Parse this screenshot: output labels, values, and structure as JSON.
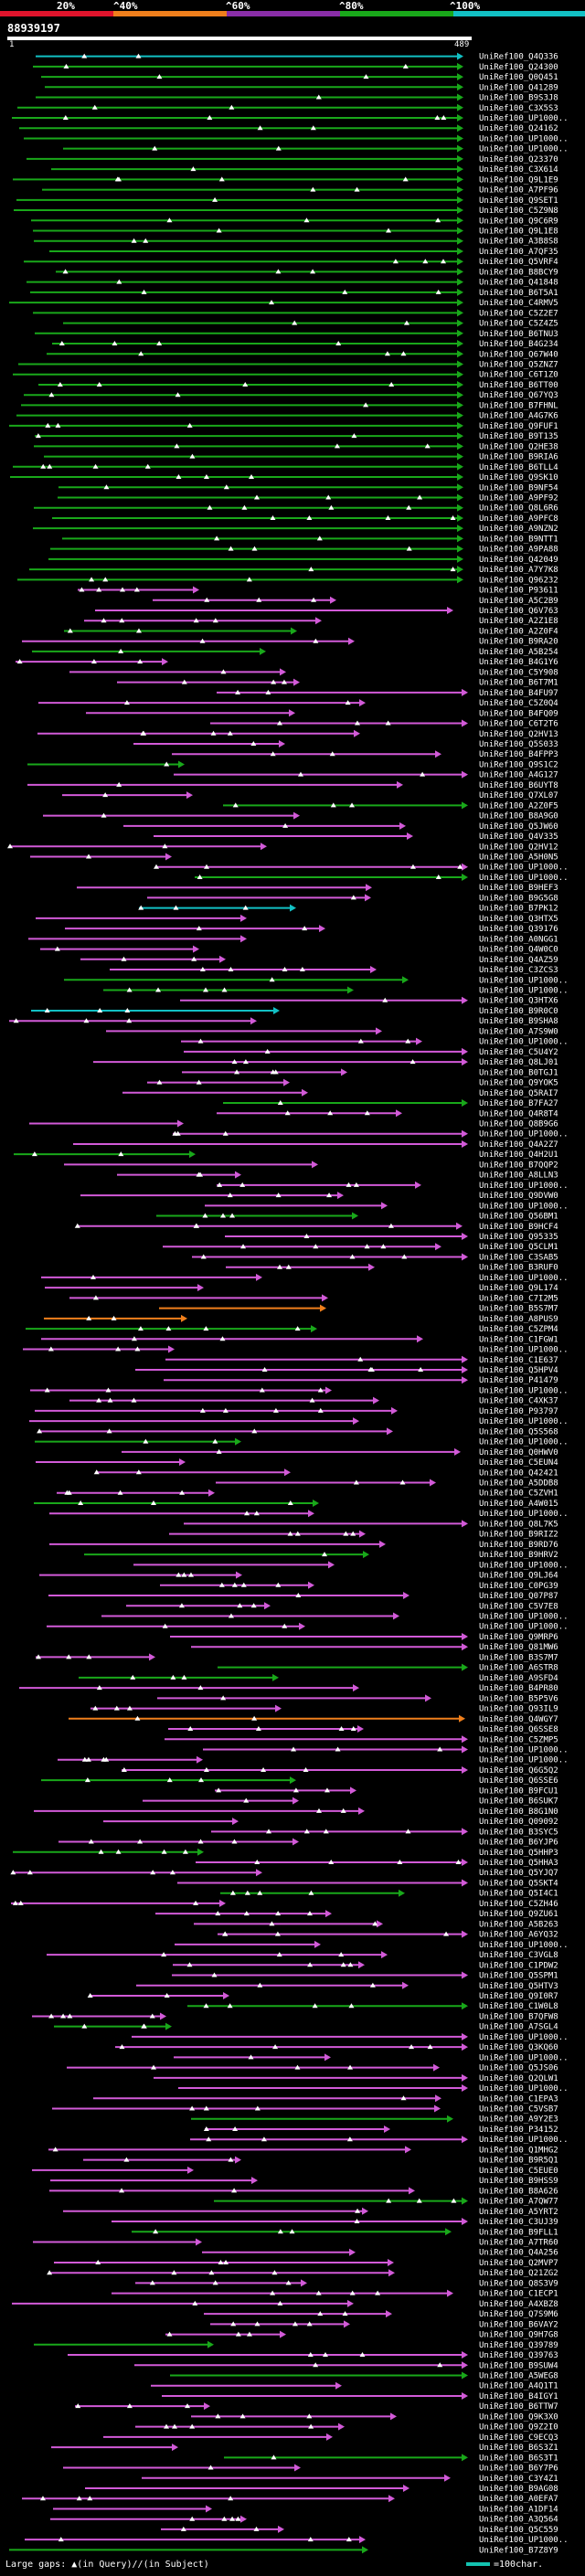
{
  "header": {
    "percent_labels": [
      "20%",
      "^40%",
      "^60%",
      "^80%",
      "^100%"
    ],
    "bar_colors": [
      "#e0142c",
      "#ef7f1c",
      "#8a2ea8",
      "#19a81a",
      "#12c0c4"
    ],
    "query_id": "88939197",
    "ruler_start": "1",
    "ruler_end": "489"
  },
  "footer": {
    "large_gaps_label": "Large gaps:",
    "in_query_label": "(in Query)/",
    "in_subject_label": "(in Subject)",
    "scale_label": "=100char."
  },
  "hits": [
    "UniRef100_Q4Q336",
    "UniRef100_Q24300",
    "UniRef100_Q0Q451",
    "UniRef100_Q41289",
    "UniRef100_B9S3J8",
    "UniRef100_C3X5S3",
    "UniRef100_UP1000..",
    "UniRef100_Q24162",
    "UniRef100_UP1000..",
    "UniRef100_UP1000..",
    "UniRef100_Q23370",
    "UniRef100_C3X614",
    "UniRef100_Q9L1E9",
    "UniRef100_A7PF96",
    "UniRef100_Q9SET1",
    "UniRef100_C5Z9N8",
    "UniRef100_Q9C6R9",
    "UniRef100_Q9L1E8",
    "UniRef100_A3B8S8",
    "UniRef100_A7QF35",
    "UniRef100_Q5VRF4",
    "UniRef100_B8BCY9",
    "UniRef100_Q41848",
    "UniRef100_B6T5A1",
    "UniRef100_C4RMV5",
    "UniRef100_C5Z2E7",
    "UniRef100_C5Z4Z5",
    "UniRef100_B6TNU3",
    "UniRef100_B4G234",
    "UniRef100_Q67W40",
    "UniRef100_Q5ZNZ7",
    "UniRef100_C6T1Z0",
    "UniRef100_B6TT00",
    "UniRef100_Q67YQ3",
    "UniRef100_B7FHNL",
    "UniRef100_A4G7K6",
    "UniRef100_Q9FUF1",
    "UniRef100_B9T135",
    "UniRef100_Q2HE38",
    "UniRef100_B9RIA6",
    "UniRef100_B6TLL4",
    "UniRef100_Q9SK10",
    "UniRef100_B9NF54",
    "UniRef100_A9PF92",
    "UniRef100_Q8L6R6",
    "UniRef100_A9PFC8",
    "UniRef100_A9NZN2",
    "UniRef100_B9NTT1",
    "UniRef100_A9PA88",
    "UniRef100_Q42049",
    "UniRef100_A7Y7K8",
    "UniRef100_Q96232",
    "UniRef100_P93611",
    "UniRef100_A5C2B9",
    "UniRef100_Q6V763",
    "UniRef100_A2Z1E8",
    "UniRef100_A2Z0F4",
    "UniRef100_B9RA20",
    "UniRef100_A5B254",
    "UniRef100_B4G1Y6",
    "UniRef100_C5Y908",
    "UniRef100_B6T7M1",
    "UniRef100_B4FU97",
    "UniRef100_C5Z0Q4",
    "UniRef100_B4FQ09",
    "UniRef100_C6T2T6",
    "UniRef100_Q2HV13",
    "UniRef100_Q5S033",
    "UniRef100_B4FPP3",
    "UniRef100_Q9S1C2",
    "UniRef100_A4G127",
    "UniRef100_B6UYT8",
    "UniRef100_Q7XL07",
    "UniRef100_A2Z0F5",
    "UniRef100_B8A9G0",
    "UniRef100_Q5JW60",
    "UniRef100_Q4V335",
    "UniRef100_Q2HV12",
    "UniRef100_A5H0N5",
    "UniRef100_UP1000..",
    "UniRef100_UP1000..",
    "UniRef100_B9HEF3",
    "UniRef100_B9G5G8",
    "UniRef100_B7PK12",
    "UniRef100_Q3HTX5",
    "UniRef100_Q39176",
    "UniRef100_A0NGG1",
    "UniRef100_Q4W0C0",
    "UniRef100_Q4AZ59",
    "UniRef100_C3ZCS3",
    "UniRef100_UP1000..",
    "UniRef100_UP1000..",
    "UniRef100_Q3HTX6",
    "UniRef100_B9R0C0",
    "UniRef100_B9SHA8",
    "UniRef100_A7S9W0",
    "UniRef100_UP1000..",
    "UniRef100_C5U4Y2",
    "UniRef100_Q8LJ01",
    "UniRef100_B0TGJ1",
    "UniRef100_Q9YOK5",
    "UniRef100_Q5RAI7",
    "UniRef100_B7FA27",
    "UniRef100_Q4R8T4",
    "UniRef100_Q8B9G6",
    "UniRef100_UP1000..",
    "UniRef100_Q4A2Z7",
    "UniRef100_Q4H2U1",
    "UniRef100_B7QQP2",
    "UniRef100_A8LLN3",
    "UniRef100_UP1000..",
    "UniRef100_Q9DVW0",
    "UniRef100_UP1000..",
    "UniRef100_Q56BM1",
    "UniRef100_B9HCF4",
    "UniRef100_Q95335",
    "UniRef100_Q5CLM1",
    "UniRef100_C3SAB5",
    "UniRef100_B3RUF0",
    "UniRef100_UP1000..",
    "UniRef100_Q9L174",
    "UniRef100_C7I2M5",
    "UniRef100_B5S7M7",
    "UniRef100_A8PUS9",
    "UniRef100_C5ZPM4",
    "UniRef100_C1FGW1",
    "UniRef100_UP1000..",
    "UniRef100_C1E637",
    "UniRef100_Q5HPV4",
    "UniRef100_P41479",
    "UniRef100_UP1000..",
    "UniRef100_C4XK37",
    "UniRef100_P93797",
    "UniRef100_UP1000..",
    "UniRef100_Q5S568",
    "UniRef100_UP1000..",
    "UniRef100_Q0HWV0",
    "UniRef100_C5EUN4",
    "UniRef100_Q42421",
    "UniRef100_A5DDB8",
    "UniRef100_C5ZVH1",
    "UniRef100_A4W015",
    "UniRef100_UP1000..",
    "UniRef100_Q8L7K5",
    "UniRef100_B9RIZ2",
    "UniRef100_B9RD76",
    "UniRef100_B9HRV2",
    "UniRef100_UP1000..",
    "UniRef100_Q9LJ64",
    "UniRef100_C0PG39",
    "UniRef100_Q07P87",
    "UniRef100_C5V7E8",
    "UniRef100_UP1000..",
    "UniRef100_UP1000..",
    "UniRef100_Q9MRP6",
    "UniRef100_Q81MW6",
    "UniRef100_B3S7M7",
    "UniRef100_A6STR8",
    "UniRef100_A9SFD4",
    "UniRef100_B4PR80",
    "UniRef100_B5P5V6",
    "UniRef100_Q93IL9",
    "UniRef100_Q4WGY7",
    "UniRef100_Q6SSE8",
    "UniRef100_C5ZMP5",
    "UniRef100_UP1000..",
    "UniRef100_UP1000..",
    "UniRef100_Q6G5Q2",
    "UniRef100_Q6SSE6",
    "UniRef100_B9FCU1",
    "UniRef100_B6SUK7",
    "UniRef100_B8G1N0",
    "UniRef100_Q09092",
    "UniRef100_B3SYC5",
    "UniRef100_B6YJP6",
    "UniRef100_Q5HHP3",
    "UniRef100_Q5HHA3",
    "UniRef100_Q5YJQ7",
    "UniRef100_Q5SKT4",
    "UniRef100_Q5I4C1",
    "UniRef100_C5ZH46",
    "UniRef100_Q9ZU61",
    "UniRef100_A5B263",
    "UniRef100_A6YQ32",
    "UniRef100_UP1000..",
    "UniRef100_C3VGL8",
    "UniRef100_C1PDW2",
    "UniRef100_Q5SPM1",
    "UniRef100_Q5HTV3",
    "UniRef100_Q9I0R7",
    "UniRef100_C1W0L8",
    "UniRef100_B7QFW8",
    "UniRef100_A7SGL4",
    "UniRef100_UP1000..",
    "UniRef100_Q3KQ60",
    "UniRef100_UP1000..",
    "UniRef100_Q5JS06",
    "UniRef100_Q2QLW1",
    "UniRef100_UP1000..",
    "UniRef100_C1EPA3",
    "UniRef100_C5VSB7",
    "UniRef100_A9Y2E3",
    "UniRef100_P34152",
    "UniRef100_UP1000..",
    "UniRef100_Q1MHG2",
    "UniRef100_B9R5Q1",
    "UniRef100_C5EUE0",
    "UniRef100_B9HSS9",
    "UniRef100_B8A626",
    "UniRef100_A7QW77",
    "UniRef100_A5YRT2",
    "UniRef100_C3UJ39",
    "UniRef100_B9FLL1",
    "UniRef100_A7TR60",
    "UniRef100_Q4A256",
    "UniRef100_Q2MVP7",
    "UniRef100_Q21ZG2",
    "UniRef100_Q8S3V9",
    "UniRef100_C1ECP1",
    "UniRef100_A4XBZ8",
    "UniRef100_Q7S9M6",
    "UniRef100_B6VAY2",
    "UniRef100_Q9H7G8",
    "UniRef100_Q39789",
    "UniRef100_Q39763",
    "UniRef100_B9SUW4",
    "UniRef100_A5WEG8",
    "UniRef100_A4Q1T1",
    "UniRef100_B4IGY1",
    "UniRef100_B6TTW7",
    "UniRef100_Q9K3X0",
    "UniRef100_Q9Z2I0",
    "UniRef100_C9ECQ3",
    "UniRef100_B6S3Z1",
    "UniRef100_B6S3T1",
    "UniRef100_B6Y7P6",
    "UniRef100_C3Y4Z1",
    "UniRef100_B9AG08",
    "UniRef100_A0EFA7",
    "UniRef100_A1DF14",
    "UniRef100_A3Q564",
    "UniRef100_Q5C559",
    "UniRef100_UP1000..",
    "UniRef100_B7Z8Y9"
  ]
}
